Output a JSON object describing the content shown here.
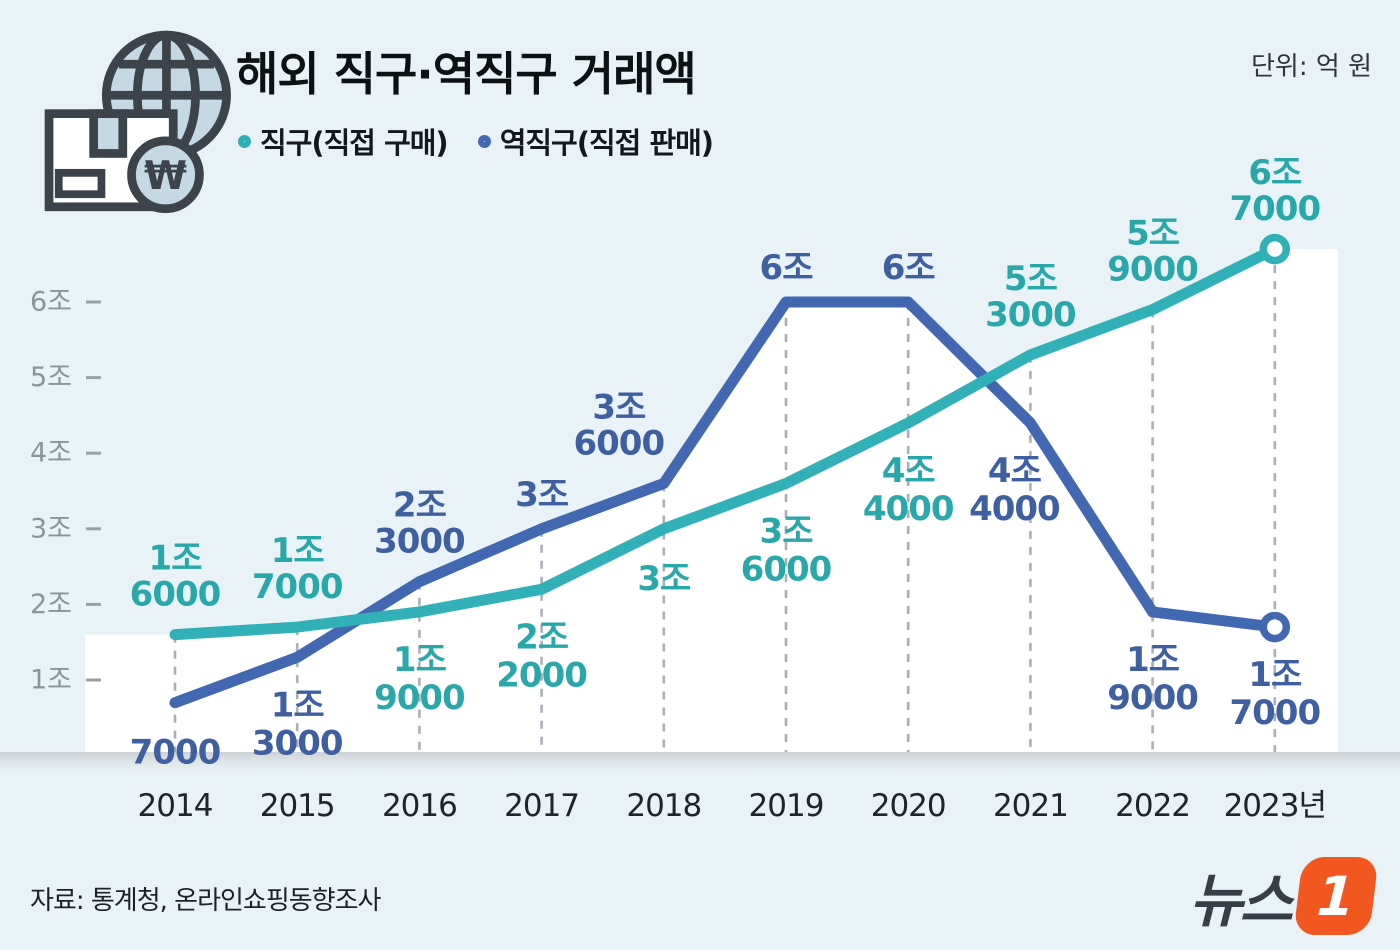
{
  "page": {
    "background": "#e9f3f7"
  },
  "header": {
    "title": "해외 직구·역직구 거래액",
    "unit_label": "단위: 억 원",
    "legend": [
      {
        "label": "직구(직접 구매)",
        "color": "#2fb0b8"
      },
      {
        "label": "역직구(직접 판매)",
        "color": "#4268b1"
      }
    ]
  },
  "chart_data": {
    "type": "line",
    "title": "해외 직구·역직구 거래액",
    "unit": "억 원",
    "categories": [
      "2014",
      "2015",
      "2016",
      "2017",
      "2018",
      "2019",
      "2020",
      "2021",
      "2022",
      "2023년"
    ],
    "y_tick_labels": [
      "1조",
      "2조",
      "3조",
      "4조",
      "5조",
      "6조"
    ],
    "ylim_jo": [
      0,
      7
    ],
    "grid": "vertical-dashed-per-year",
    "legend_position": "top",
    "series": [
      {
        "name": "직구(직접 구매)",
        "line_color": "#31b1b7",
        "label_color": "#2aa7ab",
        "values_eok": [
          16000,
          17000,
          19000,
          22000,
          30000,
          36000,
          44000,
          53000,
          59000,
          67000
        ],
        "values_jo": [
          1.6,
          1.7,
          1.9,
          2.2,
          3.0,
          3.6,
          4.4,
          5.3,
          5.9,
          6.7
        ],
        "point_labels": [
          [
            "1조",
            "6000"
          ],
          [
            "1조",
            "7000"
          ],
          [
            "1조",
            "9000"
          ],
          [
            "2조",
            "2000"
          ],
          [
            "3조"
          ],
          [
            "3조",
            "6000"
          ],
          [
            "4조",
            "4000"
          ],
          [
            "5조",
            "3000"
          ],
          [
            "5조",
            "9000"
          ],
          [
            "6조",
            "7000"
          ]
        ],
        "label_side": [
          "above",
          "above",
          "below",
          "below",
          "below",
          "below",
          "below",
          "above",
          "above",
          "above"
        ],
        "end_marker": "open-circle"
      },
      {
        "name": "역직구(직접 판매)",
        "line_color": "#4268b1",
        "label_color": "#3e5fa0",
        "values_eok": [
          7000,
          13000,
          23000,
          30000,
          36000,
          60000,
          60000,
          44000,
          19000,
          17000
        ],
        "values_jo": [
          0.7,
          1.3,
          2.3,
          3.0,
          3.6,
          6.0,
          6.0,
          4.4,
          1.9,
          1.7
        ],
        "point_labels": [
          [
            "7000"
          ],
          [
            "1조",
            "3000"
          ],
          [
            "2조",
            "3000"
          ],
          [
            "3조"
          ],
          [
            "3조",
            "6000"
          ],
          [
            "6조"
          ],
          [
            "6조"
          ],
          [
            "4조",
            "4000"
          ],
          [
            "1조",
            "9000"
          ],
          [
            "1조",
            "7000"
          ]
        ],
        "label_side": [
          "below",
          "below",
          "above",
          "above",
          "above",
          "above",
          "above",
          "below",
          "below",
          "below"
        ],
        "end_marker": "open-circle"
      }
    ]
  },
  "footer": {
    "source": "자료: 통계청, 온라인쇼핑동향조사",
    "logo": {
      "text": "뉴스",
      "badge": "1",
      "badge_color": "#f1571f",
      "text_color": "#383e45"
    }
  }
}
